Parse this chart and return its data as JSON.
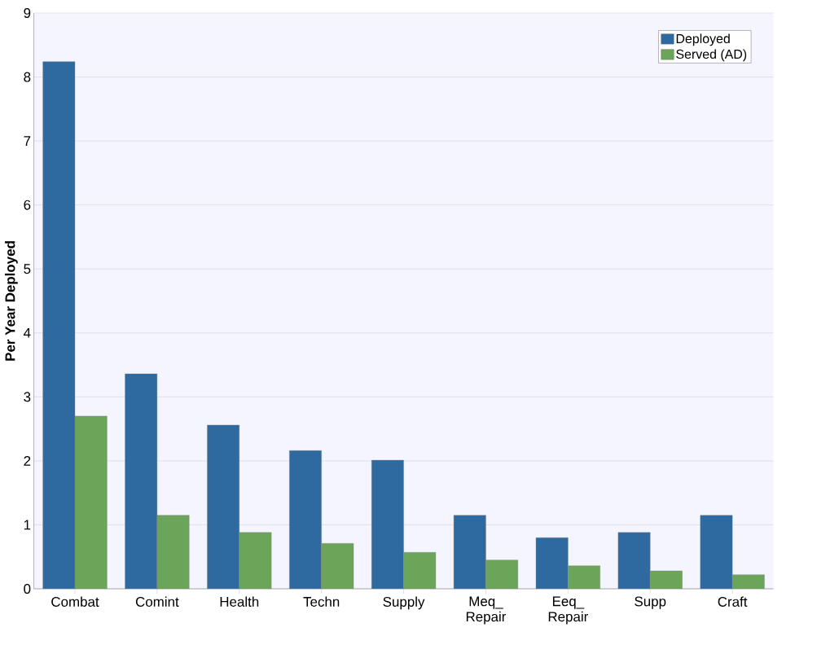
{
  "chart_data": {
    "type": "bar",
    "ylabel": "Per Year Deployed",
    "categories": [
      "Combat",
      "Comint",
      "Health",
      "Techn",
      "Supply",
      "Meq_ Repair",
      "Eeq_ Repair",
      "Supp",
      "Craft"
    ],
    "series": [
      {
        "name": "Deployed",
        "color": "#2e6aa0",
        "values": [
          8.24,
          3.36,
          2.56,
          2.16,
          2.01,
          1.15,
          0.8,
          0.88,
          1.15
        ]
      },
      {
        "name": "Served (AD)",
        "color": "#6aa55a",
        "values": [
          2.7,
          1.15,
          0.88,
          0.71,
          0.57,
          0.45,
          0.36,
          0.28,
          0.22
        ]
      }
    ],
    "ylim": [
      0,
      9
    ],
    "yticks": [
      0,
      1,
      2,
      3,
      4,
      5,
      6,
      7,
      8,
      9
    ],
    "grid": "y",
    "legend": "top right"
  }
}
